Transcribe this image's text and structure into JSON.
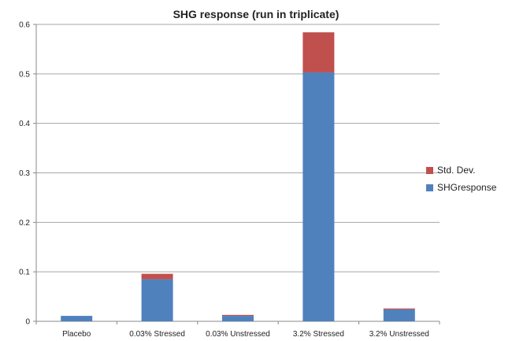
{
  "chart_data": {
    "type": "bar",
    "stacked": true,
    "title": "SHG response (run in triplicate)",
    "xlabel": "",
    "ylabel": "",
    "categories": [
      "Placebo",
      "0.03% Stressed",
      "0.03% Unstressed",
      "3.2% Stressed",
      "3.2% Unstressed"
    ],
    "series": [
      {
        "name": "SHGresponse",
        "color": "#4f81bd",
        "values": [
          0.011,
          0.085,
          0.011,
          0.503,
          0.024
        ]
      },
      {
        "name": "Std. Dev.",
        "color": "#c0504d",
        "values": [
          0.0,
          0.011,
          0.002,
          0.081,
          0.002
        ]
      }
    ],
    "ylim": [
      0,
      0.6
    ],
    "yticks": [
      "0",
      "0.1",
      "0.2",
      "0.3",
      "0.4",
      "0.5",
      "0.6"
    ],
    "grid": true,
    "legend_position": "right"
  }
}
